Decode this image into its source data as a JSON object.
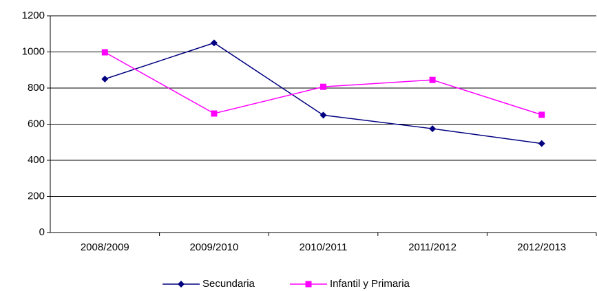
{
  "chart_data": {
    "type": "line",
    "categories": [
      "2008/2009",
      "2009/2010",
      "2010/2011",
      "2011/2012",
      "2012/2013"
    ],
    "series": [
      {
        "name": "Secundaria",
        "color": "#000080",
        "marker": "diamond",
        "values": [
          850,
          1050,
          650,
          575,
          493
        ]
      },
      {
        "name": "Infantil y Primaria",
        "color": "#ff00ff",
        "marker": "square",
        "values": [
          998,
          659,
          807,
          845,
          652
        ]
      }
    ],
    "ylim": [
      0,
      1200
    ],
    "yticks": [
      0,
      200,
      400,
      600,
      800,
      1000,
      1200
    ],
    "grid": true,
    "legend": "bottom"
  }
}
